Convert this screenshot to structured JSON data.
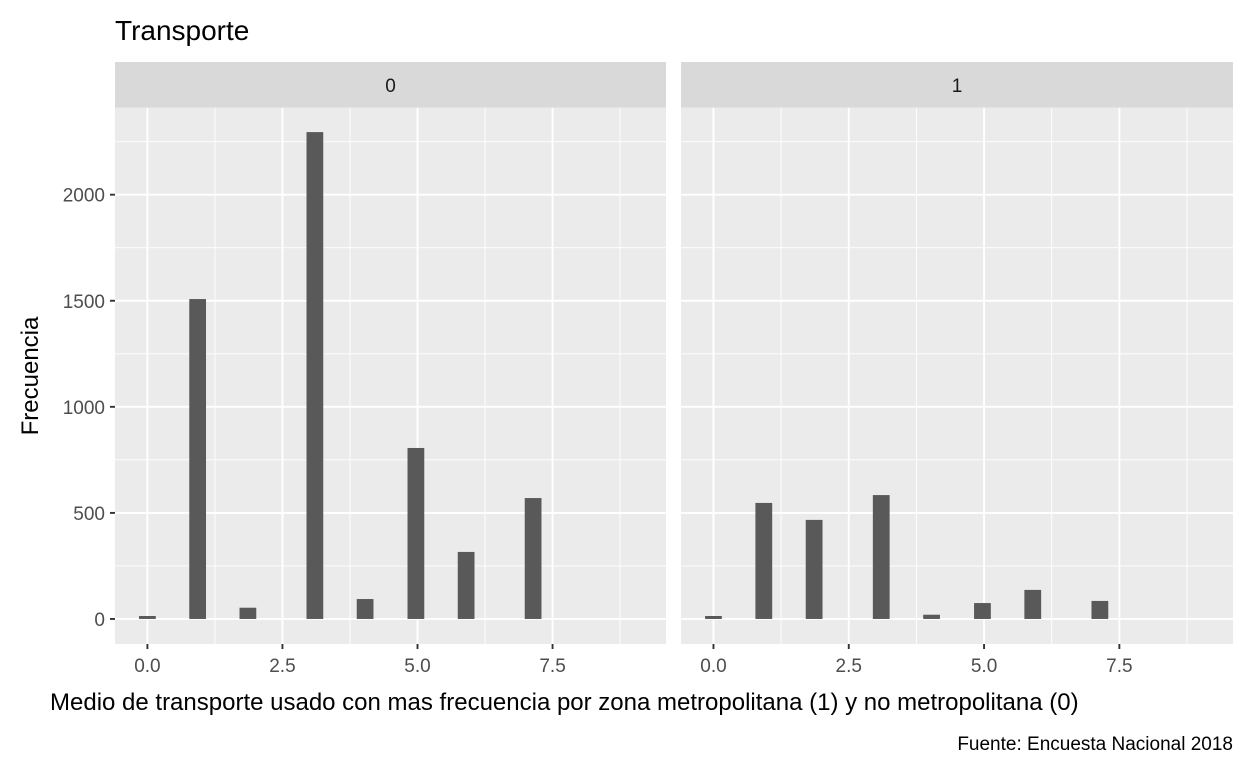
{
  "chart_data": {
    "type": "bar",
    "subtype": "histogram-facet",
    "title": "Transporte",
    "xlabel": "Medio de transporte usado con mas frecuencia por zona metropolitana (1) y no metropolitana (0)",
    "ylabel": "Frecuencia",
    "caption": "Fuente: Encuesta Nacional 2018",
    "xlim": [
      -0.6,
      9.6
    ],
    "ylim": [
      -118,
      2410
    ],
    "x_ticks": [
      0.0,
      2.5,
      5.0,
      7.5
    ],
    "x_tick_labels": [
      "0.0",
      "2.5",
      "5.0",
      "7.5"
    ],
    "x_minor": [
      1.25,
      3.75,
      6.25,
      8.75
    ],
    "y_ticks": [
      0,
      500,
      1000,
      1500,
      2000
    ],
    "y_tick_labels": [
      "0",
      "500",
      "1000",
      "1500",
      "2000"
    ],
    "y_minor": [
      250,
      750,
      1250,
      1750,
      2250
    ],
    "bin_width": 0.31,
    "grid": true,
    "legend": "none",
    "bar_color": "#595959",
    "panel_bg": "#ebebeb",
    "strip_bg": "#d9d9d9",
    "grid_color": "#ffffff",
    "facets": [
      {
        "label": "0",
        "x": [
          0.0,
          0.93,
          1.86,
          3.1,
          4.03,
          4.97,
          5.9,
          7.14
        ],
        "values": [
          14,
          1508,
          53,
          2295,
          94,
          806,
          316,
          570
        ]
      },
      {
        "label": "1",
        "x": [
          0.0,
          0.93,
          1.86,
          3.1,
          4.03,
          4.97,
          5.9,
          7.14
        ],
        "values": [
          14,
          547,
          467,
          584,
          20,
          75,
          137,
          85
        ]
      }
    ]
  }
}
